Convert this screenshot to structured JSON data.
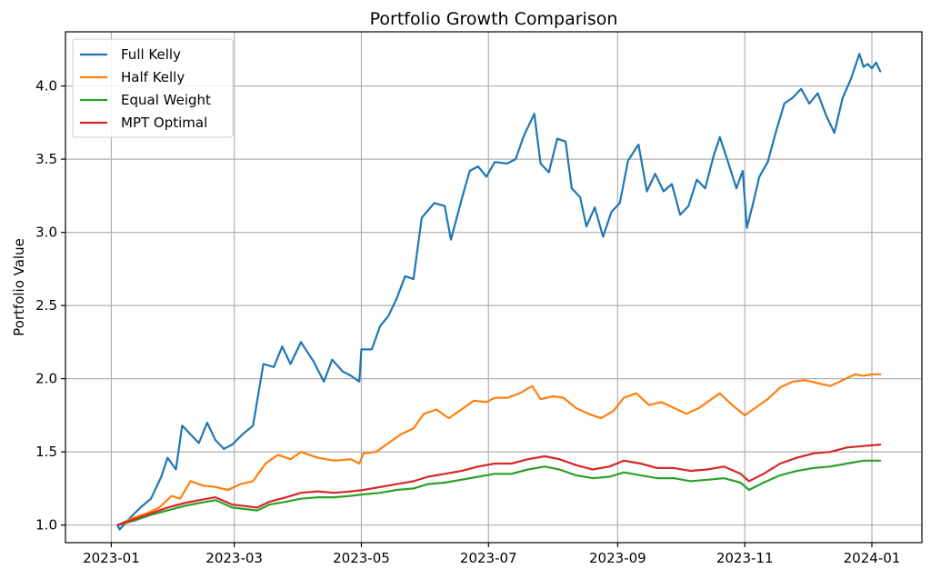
{
  "chart_data": {
    "type": "line",
    "title": "Portfolio Growth Comparison",
    "xlabel": "",
    "ylabel": "Portfolio Value",
    "x_axis": {
      "ticks": [
        "2023-01",
        "2023-03",
        "2023-05",
        "2023-07",
        "2023-09",
        "2023-11",
        "2024-01"
      ],
      "range": [
        "2022-12-10",
        "2024-01-25"
      ]
    },
    "y_axis": {
      "ticks": [
        "1.0",
        "1.5",
        "2.0",
        "2.5",
        "3.0",
        "3.5",
        "4.0"
      ],
      "ylim": [
        0.88,
        4.37
      ]
    },
    "grid": true,
    "legend_position": "top-left",
    "series": [
      {
        "name": "Full Kelly",
        "color": "#1f77b4",
        "points": [
          [
            "2023-01-04",
            1.0
          ],
          [
            "2023-01-05",
            0.97
          ],
          [
            "2023-01-10",
            1.05
          ],
          [
            "2023-01-15",
            1.12
          ],
          [
            "2023-01-20",
            1.18
          ],
          [
            "2023-01-25",
            1.33
          ],
          [
            "2023-01-28",
            1.46
          ],
          [
            "2023-02-01",
            1.38
          ],
          [
            "2023-02-04",
            1.68
          ],
          [
            "2023-02-08",
            1.62
          ],
          [
            "2023-02-12",
            1.56
          ],
          [
            "2023-02-16",
            1.7
          ],
          [
            "2023-02-20",
            1.58
          ],
          [
            "2023-02-24",
            1.52
          ],
          [
            "2023-02-28",
            1.55
          ],
          [
            "2023-03-05",
            1.62
          ],
          [
            "2023-03-10",
            1.68
          ],
          [
            "2023-03-15",
            2.1
          ],
          [
            "2023-03-20",
            2.08
          ],
          [
            "2023-03-24",
            2.22
          ],
          [
            "2023-03-28",
            2.1
          ],
          [
            "2023-04-02",
            2.25
          ],
          [
            "2023-04-08",
            2.12
          ],
          [
            "2023-04-13",
            1.98
          ],
          [
            "2023-04-17",
            2.13
          ],
          [
            "2023-04-22",
            2.05
          ],
          [
            "2023-04-26",
            2.02
          ],
          [
            "2023-04-30",
            1.98
          ],
          [
            "2023-05-01",
            2.2
          ],
          [
            "2023-05-06",
            2.2
          ],
          [
            "2023-05-10",
            2.36
          ],
          [
            "2023-05-14",
            2.43
          ],
          [
            "2023-05-18",
            2.55
          ],
          [
            "2023-05-22",
            2.7
          ],
          [
            "2023-05-26",
            2.68
          ],
          [
            "2023-05-30",
            3.1
          ],
          [
            "2023-06-05",
            3.2
          ],
          [
            "2023-06-10",
            3.18
          ],
          [
            "2023-06-13",
            2.95
          ],
          [
            "2023-06-18",
            3.22
          ],
          [
            "2023-06-22",
            3.42
          ],
          [
            "2023-06-26",
            3.45
          ],
          [
            "2023-06-30",
            3.38
          ],
          [
            "2023-07-04",
            3.48
          ],
          [
            "2023-07-10",
            3.47
          ],
          [
            "2023-07-14",
            3.5
          ],
          [
            "2023-07-18",
            3.66
          ],
          [
            "2023-07-23",
            3.81
          ],
          [
            "2023-07-26",
            3.47
          ],
          [
            "2023-07-30",
            3.41
          ],
          [
            "2023-08-03",
            3.64
          ],
          [
            "2023-08-07",
            3.62
          ],
          [
            "2023-08-10",
            3.3
          ],
          [
            "2023-08-14",
            3.24
          ],
          [
            "2023-08-17",
            3.04
          ],
          [
            "2023-08-21",
            3.17
          ],
          [
            "2023-08-25",
            2.97
          ],
          [
            "2023-08-29",
            3.14
          ],
          [
            "2023-09-02",
            3.2
          ],
          [
            "2023-09-06",
            3.49
          ],
          [
            "2023-09-11",
            3.6
          ],
          [
            "2023-09-15",
            3.28
          ],
          [
            "2023-09-19",
            3.4
          ],
          [
            "2023-09-23",
            3.28
          ],
          [
            "2023-09-27",
            3.33
          ],
          [
            "2023-10-01",
            3.12
          ],
          [
            "2023-10-05",
            3.18
          ],
          [
            "2023-10-09",
            3.36
          ],
          [
            "2023-10-13",
            3.3
          ],
          [
            "2023-10-17",
            3.52
          ],
          [
            "2023-10-20",
            3.65
          ],
          [
            "2023-10-24",
            3.48
          ],
          [
            "2023-10-28",
            3.3
          ],
          [
            "2023-10-31",
            3.42
          ],
          [
            "2023-11-02",
            3.03
          ],
          [
            "2023-11-05",
            3.2
          ],
          [
            "2023-11-08",
            3.38
          ],
          [
            "2023-11-12",
            3.48
          ],
          [
            "2023-11-16",
            3.69
          ],
          [
            "2023-11-20",
            3.88
          ],
          [
            "2023-11-24",
            3.92
          ],
          [
            "2023-11-28",
            3.98
          ],
          [
            "2023-12-02",
            3.88
          ],
          [
            "2023-12-06",
            3.95
          ],
          [
            "2023-12-10",
            3.8
          ],
          [
            "2023-12-14",
            3.68
          ],
          [
            "2023-12-18",
            3.92
          ],
          [
            "2023-12-22",
            4.05
          ],
          [
            "2023-12-26",
            4.22
          ],
          [
            "2023-12-28",
            4.13
          ],
          [
            "2023-12-30",
            4.15
          ],
          [
            "2024-01-01",
            4.12
          ],
          [
            "2024-01-03",
            4.16
          ],
          [
            "2024-01-05",
            4.1
          ]
        ]
      },
      {
        "name": "Half Kelly",
        "color": "#ff7f0e",
        "points": [
          [
            "2023-01-04",
            1.0
          ],
          [
            "2023-01-10",
            1.04
          ],
          [
            "2023-01-18",
            1.08
          ],
          [
            "2023-01-24",
            1.12
          ],
          [
            "2023-01-30",
            1.2
          ],
          [
            "2023-02-03",
            1.18
          ],
          [
            "2023-02-08",
            1.3
          ],
          [
            "2023-02-14",
            1.27
          ],
          [
            "2023-02-20",
            1.26
          ],
          [
            "2023-02-26",
            1.24
          ],
          [
            "2023-03-04",
            1.28
          ],
          [
            "2023-03-10",
            1.3
          ],
          [
            "2023-03-16",
            1.42
          ],
          [
            "2023-03-22",
            1.48
          ],
          [
            "2023-03-28",
            1.45
          ],
          [
            "2023-04-02",
            1.5
          ],
          [
            "2023-04-10",
            1.46
          ],
          [
            "2023-04-18",
            1.44
          ],
          [
            "2023-04-26",
            1.45
          ],
          [
            "2023-04-30",
            1.42
          ],
          [
            "2023-05-02",
            1.49
          ],
          [
            "2023-05-08",
            1.5
          ],
          [
            "2023-05-14",
            1.56
          ],
          [
            "2023-05-20",
            1.62
          ],
          [
            "2023-05-26",
            1.66
          ],
          [
            "2023-05-31",
            1.76
          ],
          [
            "2023-06-06",
            1.79
          ],
          [
            "2023-06-12",
            1.73
          ],
          [
            "2023-06-18",
            1.79
          ],
          [
            "2023-06-24",
            1.85
          ],
          [
            "2023-06-30",
            1.84
          ],
          [
            "2023-07-04",
            1.87
          ],
          [
            "2023-07-10",
            1.87
          ],
          [
            "2023-07-16",
            1.9
          ],
          [
            "2023-07-22",
            1.95
          ],
          [
            "2023-07-26",
            1.86
          ],
          [
            "2023-08-01",
            1.88
          ],
          [
            "2023-08-06",
            1.87
          ],
          [
            "2023-08-12",
            1.8
          ],
          [
            "2023-08-18",
            1.76
          ],
          [
            "2023-08-24",
            1.73
          ],
          [
            "2023-08-30",
            1.78
          ],
          [
            "2023-09-04",
            1.87
          ],
          [
            "2023-09-10",
            1.9
          ],
          [
            "2023-09-16",
            1.82
          ],
          [
            "2023-09-22",
            1.84
          ],
          [
            "2023-09-28",
            1.8
          ],
          [
            "2023-10-04",
            1.76
          ],
          [
            "2023-10-10",
            1.8
          ],
          [
            "2023-10-16",
            1.86
          ],
          [
            "2023-10-20",
            1.9
          ],
          [
            "2023-10-26",
            1.82
          ],
          [
            "2023-11-01",
            1.75
          ],
          [
            "2023-11-06",
            1.8
          ],
          [
            "2023-11-12",
            1.86
          ],
          [
            "2023-11-18",
            1.94
          ],
          [
            "2023-11-24",
            1.98
          ],
          [
            "2023-11-30",
            1.99
          ],
          [
            "2023-12-06",
            1.97
          ],
          [
            "2023-12-12",
            1.95
          ],
          [
            "2023-12-18",
            1.99
          ],
          [
            "2023-12-24",
            2.03
          ],
          [
            "2023-12-28",
            2.02
          ],
          [
            "2024-01-01",
            2.03
          ],
          [
            "2024-01-05",
            2.03
          ]
        ]
      },
      {
        "name": "Equal Weight",
        "color": "#2ca02c",
        "points": [
          [
            "2023-01-04",
            1.0
          ],
          [
            "2023-01-12",
            1.03
          ],
          [
            "2023-01-20",
            1.07
          ],
          [
            "2023-01-28",
            1.1
          ],
          [
            "2023-02-05",
            1.13
          ],
          [
            "2023-02-12",
            1.15
          ],
          [
            "2023-02-20",
            1.17
          ],
          [
            "2023-02-28",
            1.12
          ],
          [
            "2023-03-06",
            1.11
          ],
          [
            "2023-03-12",
            1.1
          ],
          [
            "2023-03-18",
            1.14
          ],
          [
            "2023-03-26",
            1.16
          ],
          [
            "2023-04-02",
            1.18
          ],
          [
            "2023-04-10",
            1.19
          ],
          [
            "2023-04-18",
            1.19
          ],
          [
            "2023-04-26",
            1.2
          ],
          [
            "2023-05-02",
            1.21
          ],
          [
            "2023-05-10",
            1.22
          ],
          [
            "2023-05-18",
            1.24
          ],
          [
            "2023-05-26",
            1.25
          ],
          [
            "2023-06-02",
            1.28
          ],
          [
            "2023-06-10",
            1.29
          ],
          [
            "2023-06-18",
            1.31
          ],
          [
            "2023-06-26",
            1.33
          ],
          [
            "2023-07-04",
            1.35
          ],
          [
            "2023-07-12",
            1.35
          ],
          [
            "2023-07-20",
            1.38
          ],
          [
            "2023-07-28",
            1.4
          ],
          [
            "2023-08-04",
            1.38
          ],
          [
            "2023-08-12",
            1.34
          ],
          [
            "2023-08-20",
            1.32
          ],
          [
            "2023-08-28",
            1.33
          ],
          [
            "2023-09-04",
            1.36
          ],
          [
            "2023-09-12",
            1.34
          ],
          [
            "2023-09-20",
            1.32
          ],
          [
            "2023-09-28",
            1.32
          ],
          [
            "2023-10-06",
            1.3
          ],
          [
            "2023-10-14",
            1.31
          ],
          [
            "2023-10-22",
            1.32
          ],
          [
            "2023-10-30",
            1.29
          ],
          [
            "2023-11-03",
            1.24
          ],
          [
            "2023-11-10",
            1.29
          ],
          [
            "2023-11-18",
            1.34
          ],
          [
            "2023-11-26",
            1.37
          ],
          [
            "2023-12-04",
            1.39
          ],
          [
            "2023-12-12",
            1.4
          ],
          [
            "2023-12-20",
            1.42
          ],
          [
            "2023-12-28",
            1.44
          ],
          [
            "2024-01-05",
            1.44
          ]
        ]
      },
      {
        "name": "MPT Optimal",
        "color": "#d62728",
        "points": [
          [
            "2023-01-04",
            1.0
          ],
          [
            "2023-01-12",
            1.04
          ],
          [
            "2023-01-20",
            1.08
          ],
          [
            "2023-01-28",
            1.12
          ],
          [
            "2023-02-05",
            1.15
          ],
          [
            "2023-02-12",
            1.17
          ],
          [
            "2023-02-20",
            1.19
          ],
          [
            "2023-02-28",
            1.14
          ],
          [
            "2023-03-06",
            1.13
          ],
          [
            "2023-03-12",
            1.12
          ],
          [
            "2023-03-18",
            1.16
          ],
          [
            "2023-03-26",
            1.19
          ],
          [
            "2023-04-02",
            1.22
          ],
          [
            "2023-04-10",
            1.23
          ],
          [
            "2023-04-18",
            1.22
          ],
          [
            "2023-04-26",
            1.23
          ],
          [
            "2023-05-02",
            1.24
          ],
          [
            "2023-05-10",
            1.26
          ],
          [
            "2023-05-18",
            1.28
          ],
          [
            "2023-05-26",
            1.3
          ],
          [
            "2023-06-02",
            1.33
          ],
          [
            "2023-06-10",
            1.35
          ],
          [
            "2023-06-18",
            1.37
          ],
          [
            "2023-06-26",
            1.4
          ],
          [
            "2023-07-04",
            1.42
          ],
          [
            "2023-07-12",
            1.42
          ],
          [
            "2023-07-20",
            1.45
          ],
          [
            "2023-07-28",
            1.47
          ],
          [
            "2023-08-04",
            1.45
          ],
          [
            "2023-08-12",
            1.41
          ],
          [
            "2023-08-20",
            1.38
          ],
          [
            "2023-08-28",
            1.4
          ],
          [
            "2023-09-04",
            1.44
          ],
          [
            "2023-09-12",
            1.42
          ],
          [
            "2023-09-20",
            1.39
          ],
          [
            "2023-09-28",
            1.39
          ],
          [
            "2023-10-06",
            1.37
          ],
          [
            "2023-10-14",
            1.38
          ],
          [
            "2023-10-22",
            1.4
          ],
          [
            "2023-10-30",
            1.35
          ],
          [
            "2023-11-03",
            1.3
          ],
          [
            "2023-11-10",
            1.35
          ],
          [
            "2023-11-18",
            1.42
          ],
          [
            "2023-11-26",
            1.46
          ],
          [
            "2023-12-04",
            1.49
          ],
          [
            "2023-12-12",
            1.5
          ],
          [
            "2023-12-20",
            1.53
          ],
          [
            "2023-12-28",
            1.54
          ],
          [
            "2024-01-05",
            1.55
          ]
        ]
      }
    ]
  }
}
